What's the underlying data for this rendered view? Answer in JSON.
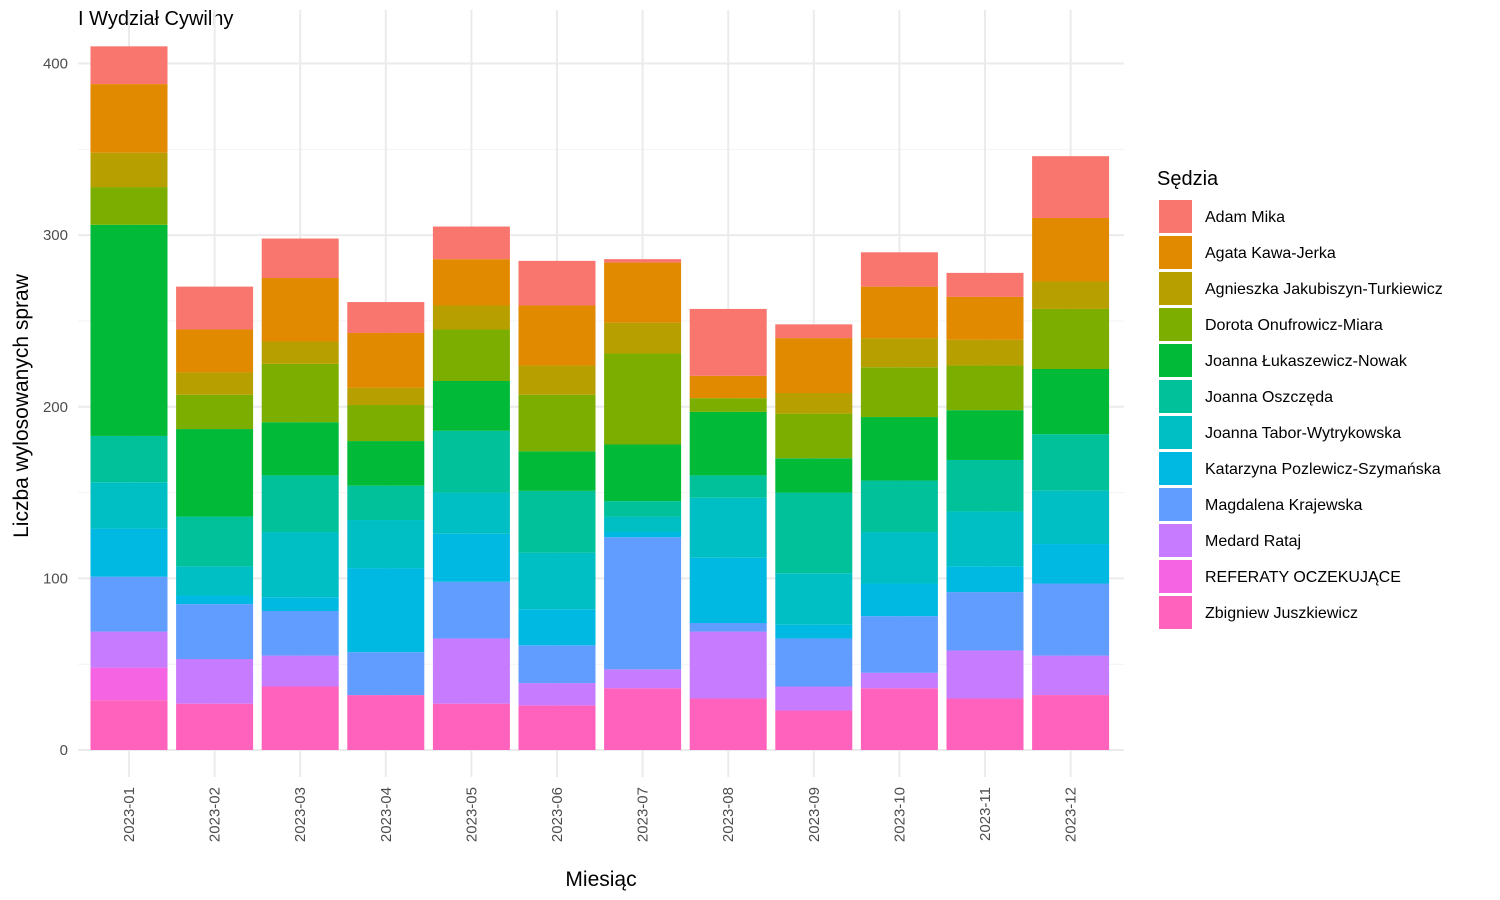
{
  "chart_data": {
    "type": "bar",
    "stacked": true,
    "title": "I Wydział Cywilny",
    "xlabel": "Miesiąc",
    "ylabel": "Liczba wylosowanych spraw",
    "ylim": [
      0,
      410
    ],
    "yticks": [
      0,
      100,
      200,
      300,
      400
    ],
    "grid": true,
    "legend_title": "Sędzia",
    "legend_position": "right",
    "categories": [
      "2023-01",
      "2023-02",
      "2023-03",
      "2023-04",
      "2023-05",
      "2023-06",
      "2023-07",
      "2023-08",
      "2023-09",
      "2023-10",
      "2023-11",
      "2023-12"
    ],
    "series": [
      {
        "name": "Zbigniew Juszkiewicz",
        "color": "#FF62BC",
        "values": [
          29,
          27,
          37,
          32,
          27,
          26,
          36,
          30,
          23,
          36,
          30,
          32
        ]
      },
      {
        "name": "REFERATY OCZEKUJĄCE",
        "color": "#F564E3",
        "values": [
          19,
          0,
          0,
          0,
          0,
          0,
          0,
          0,
          0,
          0,
          0,
          0
        ]
      },
      {
        "name": "Medard Rataj",
        "color": "#C77CFF",
        "values": [
          21,
          26,
          18,
          0,
          38,
          13,
          11,
          39,
          14,
          9,
          28,
          23
        ]
      },
      {
        "name": "Magdalena Krajewska",
        "color": "#619CFF",
        "values": [
          32,
          32,
          26,
          25,
          33,
          22,
          77,
          5,
          28,
          33,
          34,
          42
        ]
      },
      {
        "name": "Katarzyna Pozlewicz-Szymańska",
        "color": "#00B9E3",
        "values": [
          28,
          5,
          8,
          49,
          28,
          21,
          3,
          38,
          8,
          19,
          15,
          23
        ]
      },
      {
        "name": "Joanna Tabor-Wytrykowska",
        "color": "#00BFC4",
        "values": [
          27,
          17,
          38,
          28,
          24,
          33,
          9,
          35,
          30,
          30,
          32,
          31
        ]
      },
      {
        "name": "Joanna Oszczęda",
        "color": "#00C19A",
        "values": [
          27,
          29,
          33,
          20,
          36,
          36,
          9,
          13,
          47,
          30,
          30,
          33
        ]
      },
      {
        "name": "Joanna Łukaszewicz-Nowak",
        "color": "#00BA38",
        "values": [
          123,
          51,
          31,
          26,
          29,
          23,
          33,
          37,
          20,
          37,
          29,
          38
        ]
      },
      {
        "name": "Dorota Onufrowicz-Miara",
        "color": "#7CAE00",
        "values": [
          22,
          20,
          34,
          21,
          30,
          33,
          53,
          8,
          26,
          29,
          26,
          35
        ]
      },
      {
        "name": "Agnieszka Jakubiszyn-Turkiewicz",
        "color": "#B79F00",
        "values": [
          20,
          13,
          13,
          10,
          14,
          17,
          18,
          0,
          12,
          17,
          15,
          16
        ]
      },
      {
        "name": "Agata Kawa-Jerka",
        "color": "#E18A00",
        "values": [
          40,
          25,
          37,
          32,
          27,
          35,
          35,
          13,
          32,
          30,
          25,
          37
        ]
      },
      {
        "name": "Adam Mika",
        "color": "#F8766D",
        "values": [
          22,
          25,
          23,
          18,
          19,
          26,
          2,
          39,
          8,
          20,
          14,
          36
        ]
      }
    ],
    "legend_order": [
      "Adam Mika",
      "Agata Kawa-Jerka",
      "Agnieszka Jakubiszyn-Turkiewicz",
      "Dorota Onufrowicz-Miara",
      "Joanna Łukaszewicz-Nowak",
      "Joanna Oszczęda",
      "Joanna Tabor-Wytrykowska",
      "Katarzyna Pozlewicz-Szymańska",
      "Magdalena Krajewska",
      "Medard Rataj",
      "REFERATY OCZEKUJĄCE",
      "Zbigniew Juszkiewicz"
    ]
  }
}
